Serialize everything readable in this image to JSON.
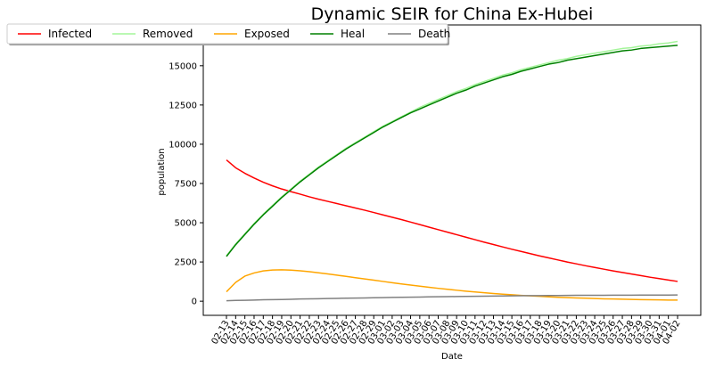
{
  "chart_data": {
    "type": "line",
    "title": "Dynamic SEIR for China Ex-Hubei",
    "xlabel": "Date",
    "ylabel": "population",
    "ylim": [
      -900,
      17600
    ],
    "yticks": [
      0,
      2500,
      5000,
      7500,
      10000,
      12500,
      15000
    ],
    "grid": false,
    "legend_position": "top-left",
    "categories": [
      "02-13",
      "02-14",
      "02-15",
      "02-16",
      "02-17",
      "02-18",
      "02-19",
      "02-20",
      "02-21",
      "02-22",
      "02-23",
      "02-24",
      "02-25",
      "02-26",
      "02-27",
      "02-28",
      "02-29",
      "03-01",
      "03-02",
      "03-03",
      "03-04",
      "03-05",
      "03-06",
      "03-07",
      "03-08",
      "03-09",
      "03-10",
      "03-11",
      "03-12",
      "03-13",
      "03-14",
      "03-15",
      "03-16",
      "03-17",
      "03-18",
      "03-19",
      "03-20",
      "03-21",
      "03-22",
      "03-23",
      "03-24",
      "03-25",
      "03-26",
      "03-27",
      "03-28",
      "03-29",
      "03-30",
      "03-31",
      "04-01",
      "04-02"
    ],
    "series": [
      {
        "name": "Infected",
        "color": "#ff0000",
        "values": [
          9000,
          8500,
          8150,
          7850,
          7580,
          7350,
          7150,
          6980,
          6820,
          6650,
          6500,
          6360,
          6220,
          6080,
          5940,
          5800,
          5650,
          5500,
          5350,
          5200,
          5040,
          4880,
          4720,
          4560,
          4400,
          4240,
          4080,
          3920,
          3760,
          3610,
          3460,
          3310,
          3170,
          3030,
          2890,
          2760,
          2630,
          2500,
          2380,
          2260,
          2150,
          2040,
          1930,
          1830,
          1730,
          1630,
          1530,
          1440,
          1350,
          1260
        ]
      },
      {
        "name": "Removed",
        "color": "#a4f59a",
        "values": [
          2900,
          3650,
          4300,
          4950,
          5550,
          6100,
          6650,
          7150,
          7650,
          8100,
          8550,
          8950,
          9350,
          9750,
          10100,
          10450,
          10800,
          11150,
          11450,
          11750,
          12050,
          12350,
          12600,
          12850,
          13100,
          13350,
          13550,
          13800,
          14000,
          14200,
          14400,
          14550,
          14750,
          14900,
          15050,
          15200,
          15350,
          15450,
          15600,
          15700,
          15800,
          15900,
          16000,
          16100,
          16150,
          16250,
          16300,
          16400,
          16450,
          16550
        ]
      },
      {
        "name": "Exposed",
        "color": "#ffa500",
        "values": [
          600,
          1200,
          1600,
          1800,
          1930,
          1990,
          2000,
          1980,
          1940,
          1880,
          1810,
          1740,
          1660,
          1580,
          1500,
          1420,
          1340,
          1260,
          1180,
          1100,
          1030,
          960,
          890,
          820,
          760,
          700,
          640,
          590,
          540,
          490,
          450,
          410,
          370,
          340,
          310,
          280,
          250,
          230,
          210,
          190,
          170,
          150,
          140,
          130,
          115,
          100,
          90,
          85,
          75,
          70
        ]
      },
      {
        "name": "Heal",
        "color": "#008000",
        "values": [
          2850,
          3600,
          4250,
          4900,
          5500,
          6050,
          6600,
          7100,
          7600,
          8050,
          8500,
          8900,
          9300,
          9700,
          10050,
          10400,
          10750,
          11100,
          11400,
          11700,
          12000,
          12250,
          12500,
          12750,
          13000,
          13250,
          13450,
          13700,
          13900,
          14100,
          14300,
          14450,
          14650,
          14800,
          14950,
          15100,
          15200,
          15350,
          15450,
          15550,
          15650,
          15750,
          15850,
          15950,
          16000,
          16100,
          16150,
          16200,
          16250,
          16300
        ]
      },
      {
        "name": "Death",
        "color": "#808080",
        "values": [
          30,
          50,
          60,
          75,
          90,
          100,
          110,
          125,
          140,
          150,
          160,
          170,
          180,
          190,
          200,
          210,
          220,
          230,
          240,
          250,
          258,
          266,
          274,
          282,
          290,
          298,
          306,
          314,
          322,
          330,
          336,
          342,
          348,
          354,
          358,
          362,
          366,
          370,
          374,
          376,
          378,
          380,
          382,
          384,
          386,
          388,
          390,
          392,
          394,
          396
        ]
      }
    ]
  }
}
